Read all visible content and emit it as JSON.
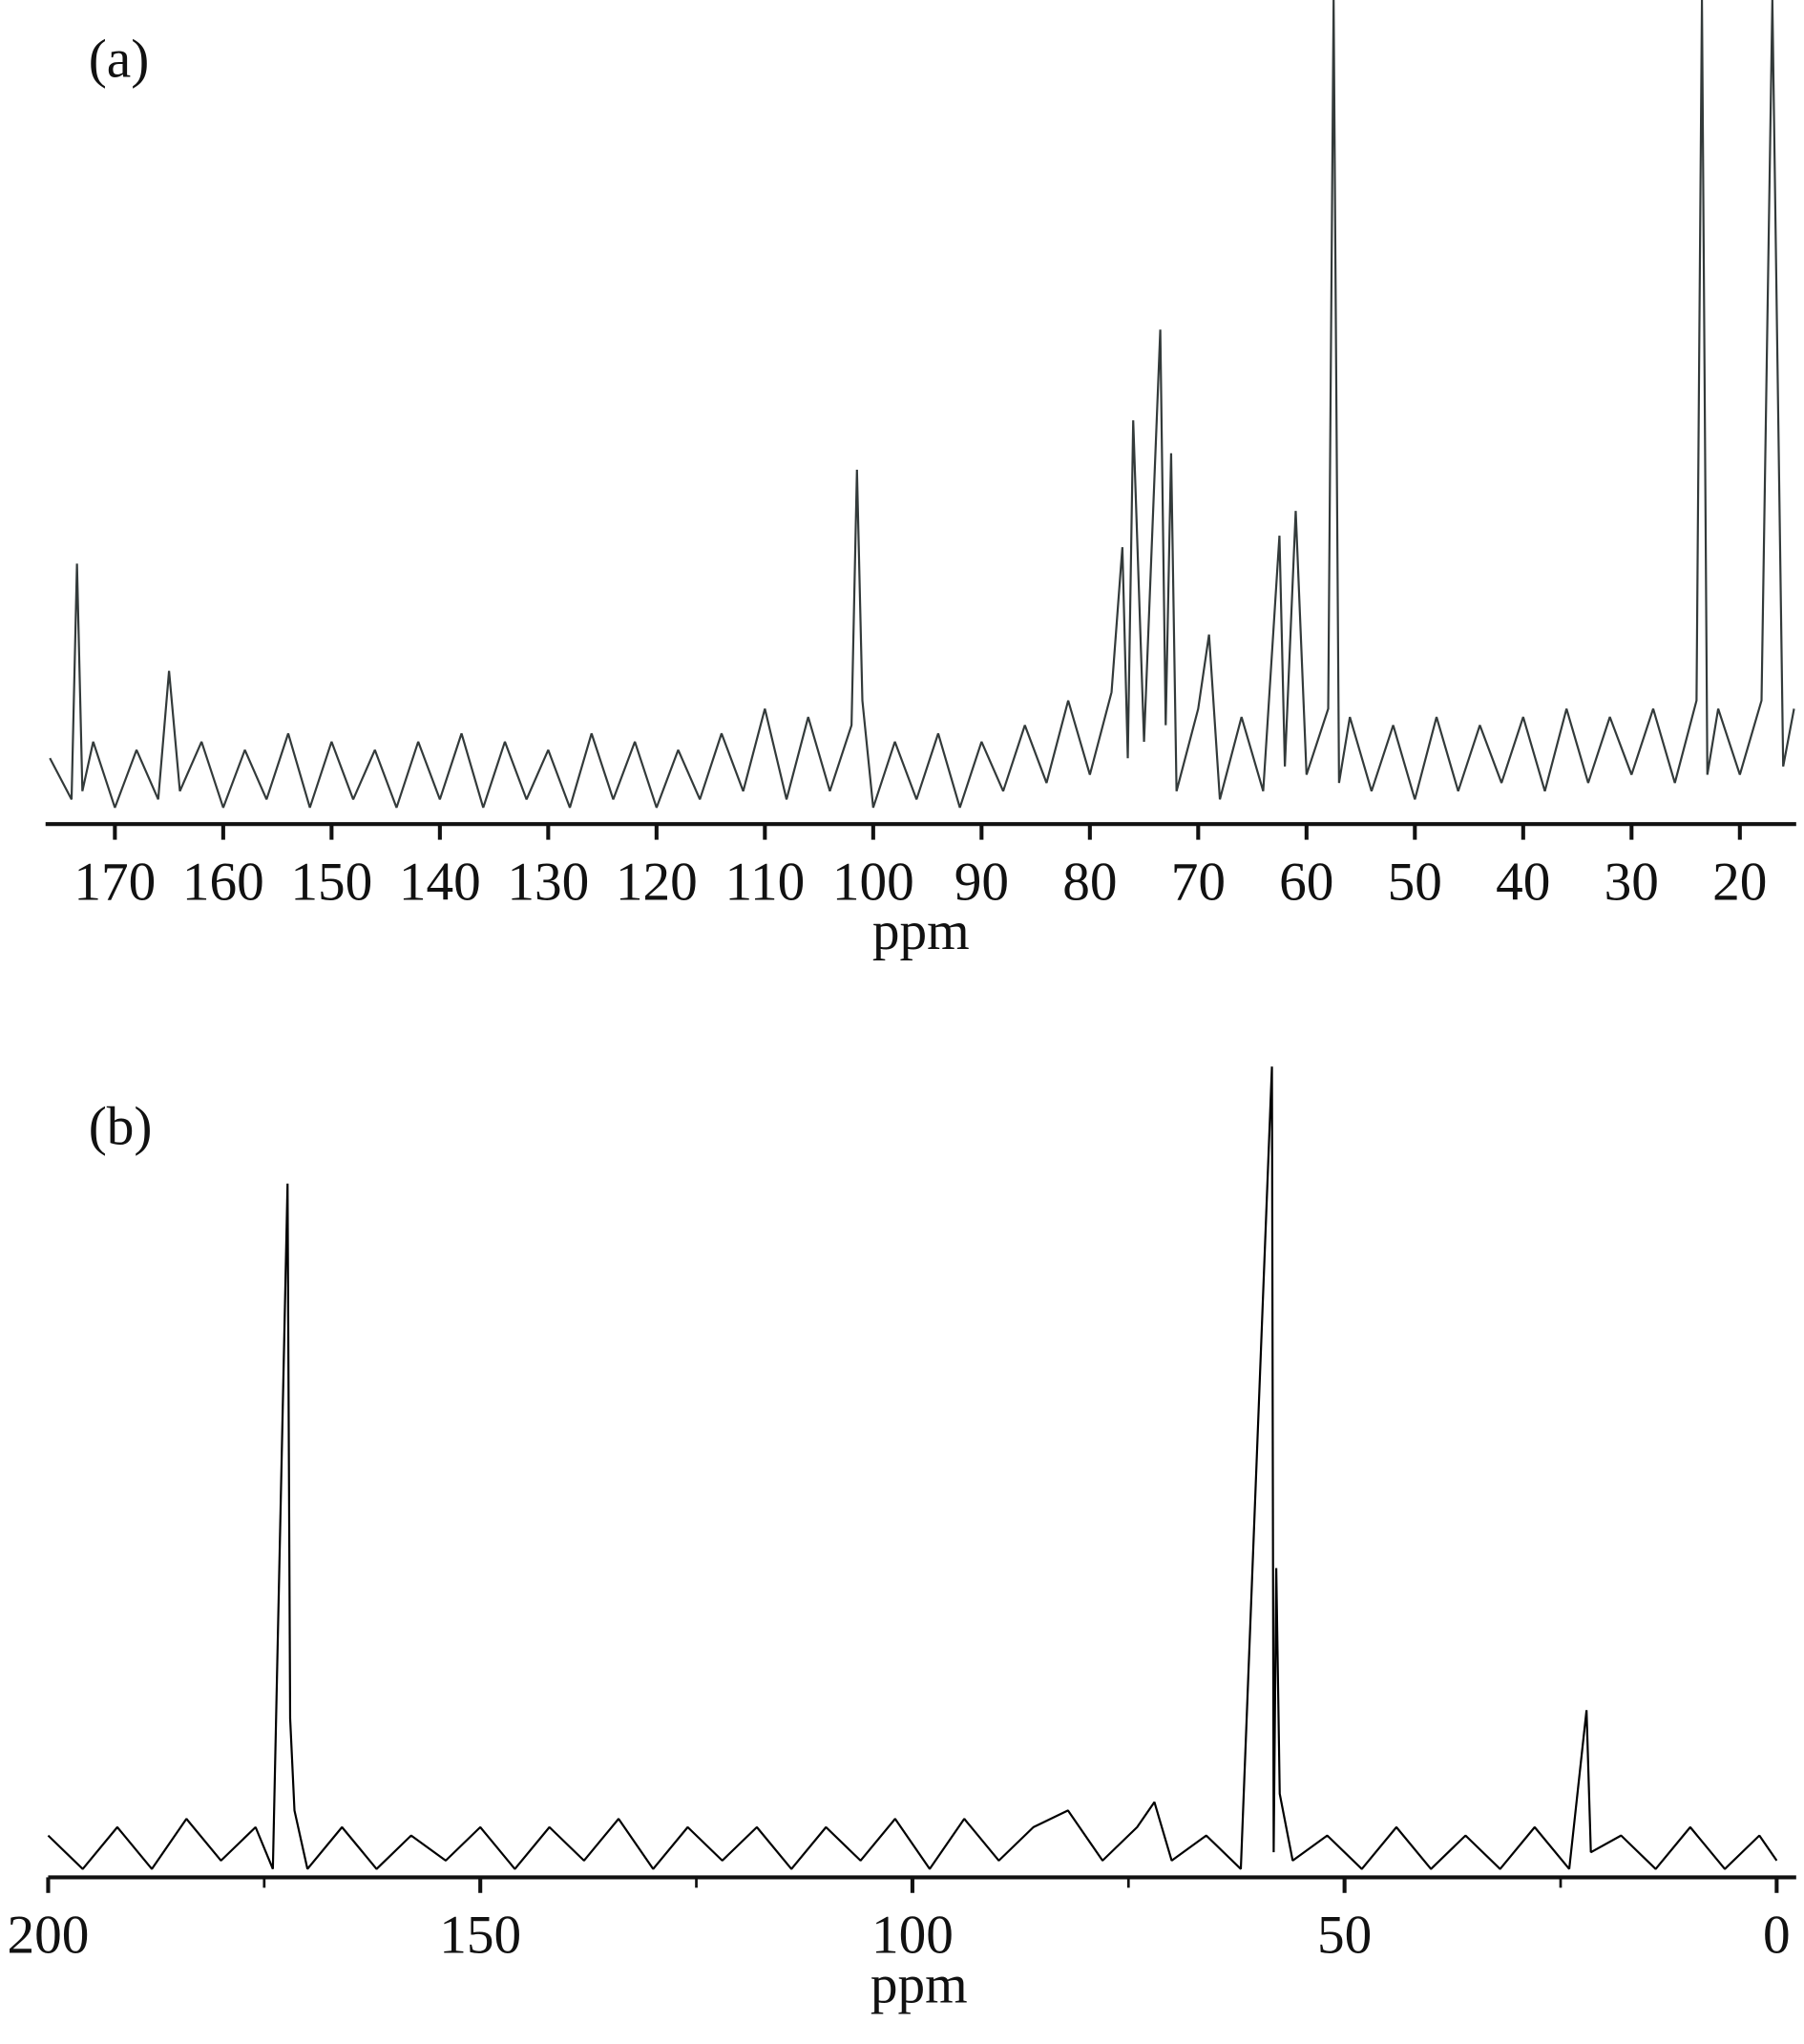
{
  "chart_data": [
    {
      "type": "line",
      "label": "(a)",
      "xlabel": "ppm",
      "color": "#333a3a",
      "xlim": [
        176.4,
        14.8
      ],
      "ylim": [
        0,
        100
      ],
      "xticks": [
        170,
        160,
        150,
        140,
        130,
        120,
        110,
        100,
        90,
        80,
        70,
        60,
        50,
        40,
        30,
        20
      ],
      "x": [
        176,
        174,
        173.5,
        173,
        172,
        170,
        168,
        166,
        165,
        164,
        162,
        160,
        158,
        156,
        154,
        152,
        150,
        148,
        146,
        144,
        142,
        140,
        138,
        136,
        134,
        132,
        130,
        128,
        126,
        124,
        122,
        120,
        118,
        116,
        114,
        112,
        110,
        108,
        106,
        104,
        102,
        101.5,
        101,
        100,
        98,
        96,
        94,
        92,
        90,
        88,
        86,
        84,
        82,
        80,
        78,
        77,
        76.5,
        76,
        75,
        73.5,
        73,
        72.5,
        72,
        70,
        69,
        68,
        66,
        64,
        62.5,
        62,
        61,
        60,
        58,
        57.5,
        57,
        56,
        54,
        52,
        50,
        48,
        46,
        44,
        42,
        40,
        38,
        36,
        34,
        32,
        30,
        28,
        26,
        24,
        23.5,
        23,
        22,
        20,
        18,
        17,
        16,
        15
      ],
      "values": [
        8,
        3,
        31.6,
        4,
        10,
        2,
        9,
        3,
        18.6,
        4,
        10,
        2,
        9,
        3,
        11,
        2,
        10,
        3,
        9,
        2,
        10,
        3,
        11,
        2,
        10,
        3,
        9,
        2,
        11,
        3,
        10,
        2,
        9,
        3,
        11,
        4,
        14,
        3,
        13,
        4,
        12,
        43,
        15,
        2,
        10,
        3,
        11,
        2,
        10,
        4,
        12,
        5,
        15,
        6,
        16,
        33.6,
        8,
        49,
        10,
        60,
        12,
        45,
        4,
        14,
        23,
        3,
        13,
        4,
        35,
        7,
        38,
        6,
        14,
        100,
        5,
        13,
        4,
        12,
        3,
        13,
        4,
        12,
        5,
        13,
        4,
        14,
        5,
        13,
        6,
        14,
        5,
        15,
        100,
        6,
        14,
        6,
        15,
        100,
        7,
        14
      ]
    },
    {
      "type": "line",
      "label": "(b)",
      "xlabel": "ppm",
      "color": "#000000",
      "xlim": [
        200,
        0
      ],
      "ylim": [
        0,
        100
      ],
      "xticks": [
        200,
        150,
        100,
        50,
        0
      ],
      "xminorticks": [
        175,
        125,
        75,
        25
      ],
      "x": [
        200,
        196,
        192,
        188,
        184,
        180,
        176,
        174,
        172.3,
        172,
        171.5,
        170,
        166,
        162,
        158,
        154,
        150,
        146,
        142,
        138,
        134,
        130,
        126,
        122,
        118,
        114,
        110,
        106,
        102,
        98,
        94,
        90,
        86,
        82,
        78,
        74,
        72,
        70,
        66,
        62,
        58.4,
        58.2,
        57.9,
        57.5,
        56,
        52,
        48,
        44,
        40,
        36,
        32,
        28,
        24,
        22,
        21.5,
        18,
        14,
        10,
        6,
        2,
        0
      ],
      "values": [
        5,
        1,
        6,
        1,
        7,
        2,
        6,
        1,
        83,
        19,
        8,
        1,
        6,
        1,
        5,
        2,
        6,
        1,
        6,
        2,
        7,
        1,
        6,
        2,
        6,
        1,
        6,
        2,
        7,
        1,
        7,
        2,
        6,
        8,
        2,
        6,
        9,
        2,
        5,
        1,
        97,
        3,
        37,
        10,
        2,
        5,
        1,
        6,
        1,
        5,
        1,
        6,
        1,
        20,
        3,
        5,
        1,
        6,
        1,
        5,
        2
      ]
    }
  ]
}
